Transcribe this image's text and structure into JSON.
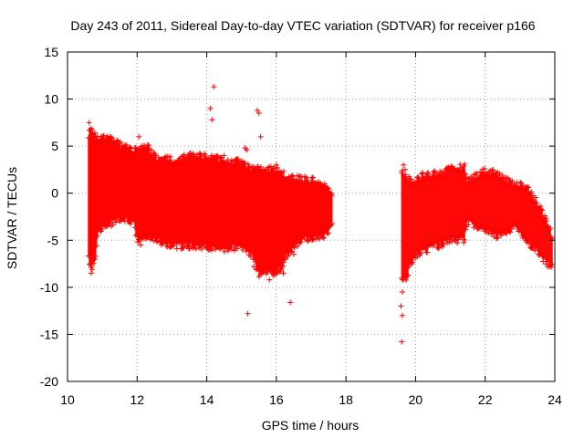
{
  "chart_data": {
    "type": "scatter",
    "title": "Day 243 of 2011, Sidereal Day-to-day VTEC variation (SDTVAR) for receiver p166",
    "xlabel": "GPS time / hours",
    "ylabel": "SDTVAR / TECUs",
    "xlim": [
      10,
      24
    ],
    "ylim": [
      -20,
      15
    ],
    "xticks": [
      "10",
      "12",
      "14",
      "16",
      "18",
      "20",
      "22",
      "24"
    ],
    "yticks": [
      "15",
      "10",
      "5",
      "0",
      "-5",
      "-10",
      "-15",
      "-20"
    ],
    "grid": true,
    "series_color": "#ff0000",
    "series": [
      {
        "name": "SDTVAR",
        "marker": "plus",
        "band": [
          [
            10.6,
            -7.0,
            6.2
          ],
          [
            10.7,
            -8.0,
            7.0
          ],
          [
            10.8,
            -6.5,
            6.0
          ],
          [
            10.9,
            -4.0,
            5.5
          ],
          [
            11.0,
            -3.5,
            5.8
          ],
          [
            11.3,
            -3.0,
            5.5
          ],
          [
            11.6,
            -2.5,
            4.8
          ],
          [
            11.9,
            -3.0,
            4.5
          ],
          [
            12.0,
            -4.8,
            4.3
          ],
          [
            12.1,
            -5.0,
            4.8
          ],
          [
            12.3,
            -4.5,
            4.8
          ],
          [
            12.6,
            -5.0,
            3.5
          ],
          [
            13.0,
            -5.5,
            3.5
          ],
          [
            13.5,
            -5.5,
            3.8
          ],
          [
            14.0,
            -5.6,
            3.8
          ],
          [
            14.3,
            -5.8,
            3.6
          ],
          [
            14.6,
            -5.8,
            3.2
          ],
          [
            14.9,
            -5.6,
            3.2
          ],
          [
            15.1,
            -6.0,
            2.8
          ],
          [
            15.3,
            -6.5,
            2.5
          ],
          [
            15.5,
            -8.5,
            2.5
          ],
          [
            15.7,
            -8.2,
            2.2
          ],
          [
            15.9,
            -8.5,
            2.6
          ],
          [
            16.1,
            -8.0,
            2.2
          ],
          [
            16.3,
            -6.5,
            1.8
          ],
          [
            16.5,
            -5.5,
            1.5
          ],
          [
            16.8,
            -4.8,
            1.4
          ],
          [
            17.1,
            -4.5,
            1.2
          ],
          [
            17.4,
            -4.5,
            0.8
          ],
          [
            17.6,
            -3.5,
            -0.5
          ],
          null,
          [
            19.6,
            -9.0,
            2.5
          ],
          [
            19.75,
            -8.8,
            1.5
          ],
          [
            19.9,
            -7.0,
            1.0
          ],
          [
            20.2,
            -6.0,
            1.8
          ],
          [
            20.6,
            -5.5,
            2.0
          ],
          [
            21.0,
            -5.0,
            2.4
          ],
          [
            21.4,
            -4.8,
            2.8
          ],
          [
            21.5,
            -3.0,
            1.2
          ],
          [
            21.9,
            -3.8,
            2.2
          ],
          [
            22.3,
            -4.5,
            2.2
          ],
          [
            22.6,
            -4.0,
            1.2
          ],
          [
            22.9,
            -3.5,
            1.0
          ],
          [
            23.2,
            -5.0,
            0.5
          ],
          [
            23.5,
            -6.0,
            -1.0
          ],
          [
            23.8,
            -7.5,
            -3.5
          ],
          [
            23.93,
            -7.8,
            -4.5
          ]
        ],
        "spikes": [
          [
            10.62,
            7.5
          ],
          [
            10.68,
            -8.5
          ],
          [
            10.7,
            -7.5
          ],
          [
            12.05,
            6.0
          ],
          [
            12.1,
            -5.5
          ],
          [
            14.1,
            9.0
          ],
          [
            14.2,
            11.3
          ],
          [
            14.15,
            7.8
          ],
          [
            14.5,
            4.0
          ],
          [
            15.1,
            4.8
          ],
          [
            15.15,
            4.6
          ],
          [
            15.18,
            -12.8
          ],
          [
            15.35,
            -7.8
          ],
          [
            15.45,
            8.8
          ],
          [
            15.5,
            8.5
          ],
          [
            15.55,
            6.0
          ],
          [
            15.8,
            -9.2
          ],
          [
            16.0,
            3.0
          ],
          [
            16.2,
            -8.5
          ],
          [
            16.4,
            -11.6
          ],
          [
            16.5,
            -6.5
          ],
          [
            19.58,
            -12.0
          ],
          [
            19.6,
            -15.8
          ],
          [
            19.62,
            -10.5
          ],
          [
            19.65,
            3.0
          ],
          [
            19.7,
            2.5
          ],
          [
            19.62,
            -13.0
          ]
        ]
      }
    ]
  }
}
